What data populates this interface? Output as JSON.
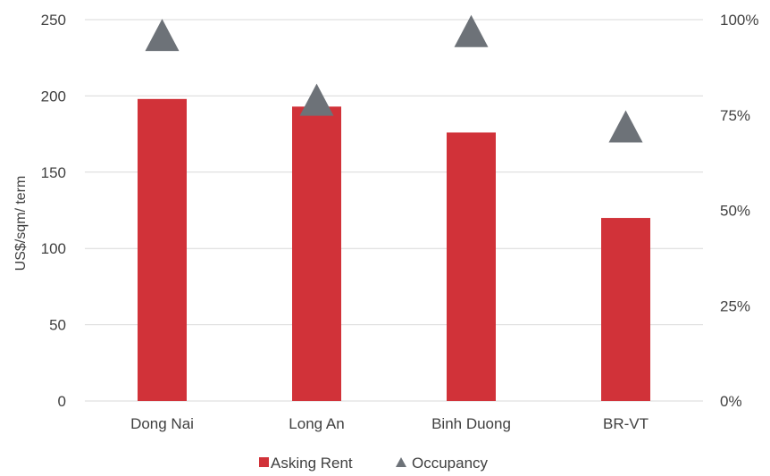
{
  "chart_data": {
    "type": "bar",
    "categories": [
      "Dong Nai",
      "Long An",
      "Binh Duong",
      "BR-VT"
    ],
    "series": [
      {
        "name": "Asking Rent",
        "type": "bar",
        "axis": "left",
        "values": [
          198,
          193,
          176,
          120
        ],
        "color": "#d13239"
      },
      {
        "name": "Occupancy",
        "type": "scatter",
        "marker": "triangle",
        "axis": "right",
        "values": [
          0.96,
          0.79,
          0.97,
          0.72
        ],
        "color": "#6d7278"
      }
    ],
    "ylabel": "US$/sqm/ term",
    "ylim": [
      0,
      250
    ],
    "y_ticks": [
      "0",
      "50",
      "100",
      "150",
      "200",
      "250"
    ],
    "y2lim": [
      0,
      1
    ],
    "y2_ticks": [
      "0%",
      "25%",
      "50%",
      "75%",
      "100%"
    ],
    "grid": true,
    "legend_position": "bottom",
    "gridline_color": "#d9d9d9"
  }
}
